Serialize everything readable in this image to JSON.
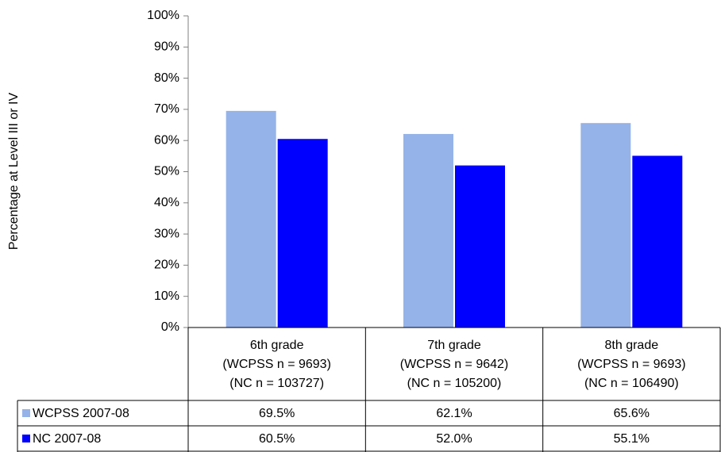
{
  "chart_data": {
    "type": "bar",
    "y_label": "Percentage at Level III or IV",
    "categories": [
      [
        "6th grade",
        "(WCPSS n = 9693)",
        "(NC n =  103727)"
      ],
      [
        "7th grade",
        "(WCPSS n = 9642)",
        "(NC n = 105200)"
      ],
      [
        "8th grade",
        "(WCPSS n = 9693)",
        "(NC n = 106490)"
      ]
    ],
    "series": [
      {
        "name": "WCPSS 2007-08",
        "color": "#95b3e8",
        "values": [
          69.5,
          62.1,
          65.6
        ],
        "value_labels": [
          "69.5%",
          "62.1%",
          "65.6%"
        ]
      },
      {
        "name": "NC 2007-08",
        "color": "#0000ff",
        "values": [
          60.5,
          52.0,
          55.1
        ],
        "value_labels": [
          "60.5%",
          "52.0%",
          "55.1%"
        ]
      }
    ],
    "ylim": [
      0,
      100
    ],
    "yticks": [
      {
        "value": 0,
        "label": "0%"
      },
      {
        "value": 10,
        "label": "10%"
      },
      {
        "value": 20,
        "label": "20%"
      },
      {
        "value": 30,
        "label": "30%"
      },
      {
        "value": 40,
        "label": "40%"
      },
      {
        "value": 50,
        "label": "50%"
      },
      {
        "value": 60,
        "label": "60%"
      },
      {
        "value": 70,
        "label": "70%"
      },
      {
        "value": 80,
        "label": "80%"
      },
      {
        "value": 90,
        "label": "90%"
      },
      {
        "value": 100,
        "label": "100%"
      }
    ],
    "grid": false
  }
}
